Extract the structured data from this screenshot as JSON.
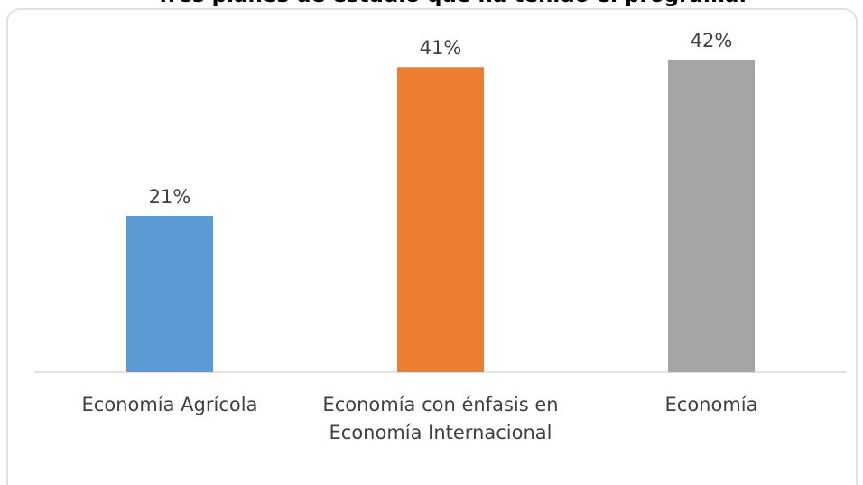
{
  "chart_data": {
    "type": "bar",
    "title": "Tres planes de estudio que ha tenido el programa.",
    "categories": [
      "Economía Agrícola",
      "Economía con énfasis en Economía Internacional",
      "Economía"
    ],
    "values": [
      21,
      41,
      42
    ],
    "value_labels": [
      "21%",
      "41%",
      "42%"
    ],
    "colors": [
      "#5b9bd5",
      "#ed7d31",
      "#a5a5a5"
    ]
  }
}
